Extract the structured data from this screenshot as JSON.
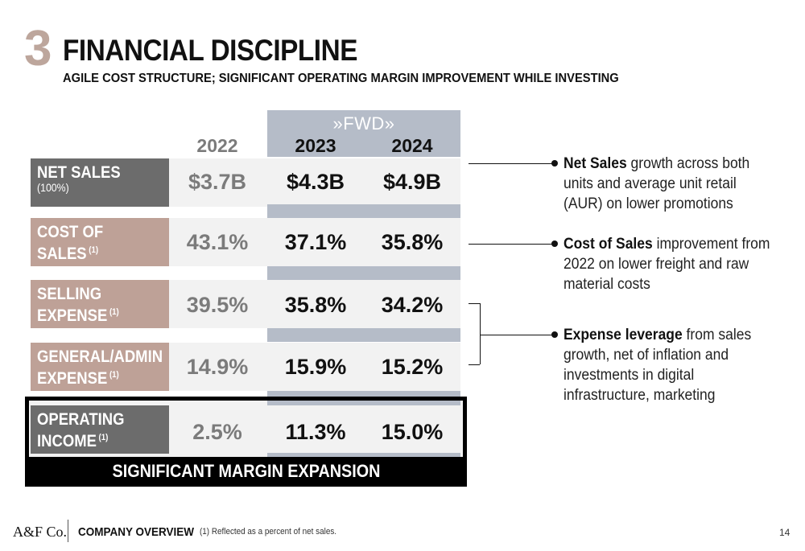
{
  "header": {
    "section_number": "3",
    "title": "FINANCIAL DISCIPLINE",
    "subtitle": "AGILE COST STRUCTURE; SIGNIFICANT OPERATING MARGIN IMPROVEMENT WHILE INVESTING"
  },
  "table": {
    "fwd_logo": "»FWD»",
    "years": [
      "2022",
      "2023",
      "2024"
    ],
    "rows": [
      {
        "label_line1": "NET SALES",
        "label_sub": "(100%)",
        "values": [
          "$3.7B",
          "$4.3B",
          "$4.9B"
        ]
      },
      {
        "label_line1": "COST OF",
        "label_line2": "SALES",
        "footnote": "(1)",
        "values": [
          "43.1%",
          "37.1%",
          "35.8%"
        ]
      },
      {
        "label_line1": "SELLING",
        "label_line2": "EXPENSE",
        "footnote": "(1)",
        "values": [
          "39.5%",
          "35.8%",
          "34.2%"
        ]
      },
      {
        "label_line1": "GENERAL/ADMIN",
        "label_line2": "EXPENSE",
        "footnote": "(1)",
        "values": [
          "14.9%",
          "15.9%",
          "15.2%"
        ]
      },
      {
        "label_line1": "OPERATING",
        "label_line2": "INCOME",
        "footnote": "(1)",
        "values": [
          "2.5%",
          "11.3%",
          "15.0%"
        ]
      }
    ],
    "highlight_caption": "SIGNIFICANT MARGIN EXPANSION"
  },
  "bullets": [
    {
      "bold": "Net Sales",
      "text": " growth across both units and average unit retail (AUR) on lower promotions"
    },
    {
      "bold": "Cost of Sales",
      "text": " improvement from 2022 on lower freight and raw material costs"
    },
    {
      "bold": "Expense leverage",
      "text": " from sales growth, net of inflation and investments in digital infrastructure, marketing"
    }
  ],
  "footer": {
    "logo": "A&F Co.",
    "title": "COMPANY OVERVIEW",
    "note": "(1) Reflected as a percent of net sales.",
    "page": "14"
  },
  "colors": {
    "accent_tan": "#bea197",
    "label_dark": "#6c6c6c",
    "fwd_band": "#b5bcc8"
  }
}
